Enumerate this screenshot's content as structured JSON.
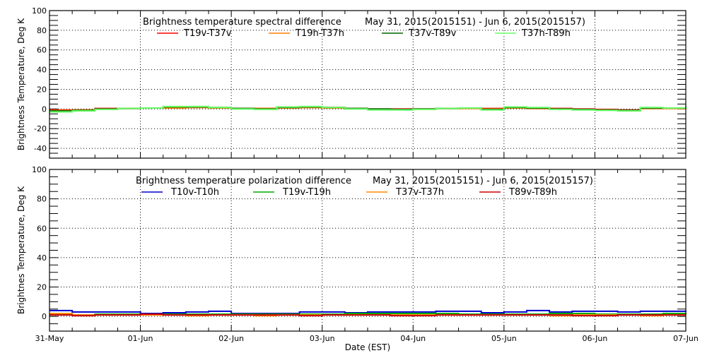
{
  "chart_data": [
    {
      "type": "line",
      "title": "Brightness temperature spectral difference",
      "date_range": "May 31, 2015(2015151) - Jun  6, 2015(2015157)",
      "ylabel": "Brightness Temperature, Deg K",
      "xlabel": "",
      "ylim": [
        -50,
        100
      ],
      "yticks": [
        -40,
        -20,
        0,
        20,
        40,
        60,
        80,
        100
      ],
      "xlim": [
        0,
        7
      ],
      "grid": true,
      "legend_placement": "top-center",
      "x": [
        0,
        0.25,
        0.5,
        0.75,
        1,
        1.25,
        1.5,
        1.75,
        2,
        2.25,
        2.5,
        2.75,
        3,
        3.25,
        3.5,
        3.75,
        4,
        4.25,
        4.5,
        4.75,
        5,
        5.25,
        5.5,
        5.75,
        6,
        6.25,
        6.5,
        6.75,
        7
      ],
      "series": [
        {
          "name": "T19v-T37v",
          "color": "#ff0000",
          "values": [
            -1,
            -1,
            0.5,
            0.5,
            1,
            1.5,
            1.5,
            1,
            0.5,
            0.5,
            1,
            1.5,
            1.5,
            0.5,
            0,
            0,
            0,
            0.5,
            1,
            0.5,
            1,
            0.5,
            0.5,
            0,
            -0.5,
            -1,
            0.5,
            1,
            1
          ]
        },
        {
          "name": "T19h-T37h",
          "color": "#ff7f00",
          "values": [
            -1.5,
            -1,
            0,
            0.5,
            1,
            1,
            1.5,
            1,
            0.5,
            0.5,
            1,
            1.5,
            1,
            0.5,
            -0.5,
            -0.5,
            0,
            0.5,
            0.5,
            0,
            1,
            0.5,
            0,
            -0.5,
            -1,
            -1.5,
            0.5,
            0.5,
            1
          ]
        },
        {
          "name": "T37v-T89v",
          "color": "#006400",
          "values": [
            -2,
            -1.5,
            0,
            0.5,
            1,
            2,
            2,
            1.5,
            0.5,
            0,
            1.5,
            2,
            1.5,
            0.5,
            0,
            -0.5,
            0,
            0.5,
            1,
            -0.5,
            1.5,
            1,
            0,
            -0.5,
            -1,
            -1.5,
            1,
            1,
            2.5
          ]
        },
        {
          "name": "T37h-T89h",
          "color": "#66ff66",
          "values": [
            -3,
            -2,
            -0.5,
            0.5,
            1,
            2.5,
            2.5,
            1.5,
            0,
            -0.5,
            2,
            2.5,
            1.5,
            0,
            -1,
            -1,
            -0.5,
            0.5,
            1,
            -1,
            2,
            1.5,
            -0.5,
            -1,
            -1.5,
            -2,
            1.5,
            1,
            3.5
          ]
        }
      ]
    },
    {
      "type": "line",
      "title": "Brightness temperature polarization difference",
      "date_range": "May 31, 2015(2015151) - Jun  6, 2015(2015157)",
      "ylabel": "Brightnes Temperature, Deg K",
      "xlabel": "Date (EST)",
      "ylim": [
        -10,
        100
      ],
      "yticks": [
        0,
        20,
        40,
        60,
        80,
        100
      ],
      "xlim": [
        0,
        7
      ],
      "xticklabels": [
        "31-May",
        "01-Jun",
        "02-Jun",
        "03-Jun",
        "04-Jun",
        "05-Jun",
        "06-Jun",
        "07-Jun"
      ],
      "grid": true,
      "legend_placement": "top-center",
      "x": [
        0,
        0.25,
        0.5,
        0.75,
        1,
        1.25,
        1.5,
        1.75,
        2,
        2.25,
        2.5,
        2.75,
        3,
        3.25,
        3.5,
        3.75,
        4,
        4.25,
        4.5,
        4.75,
        5,
        5.25,
        5.5,
        5.75,
        6,
        6.25,
        6.5,
        6.75,
        7
      ],
      "series": [
        {
          "name": "T10v-T10h",
          "color": "#0000cc",
          "values": [
            4,
            3,
            3,
            3,
            2,
            2.5,
            3,
            3.5,
            2,
            2,
            2,
            3,
            3,
            2.5,
            3,
            3,
            3,
            3.5,
            3.5,
            2.5,
            3,
            4,
            3,
            3.5,
            3.5,
            3,
            3.5,
            3.5,
            3
          ]
        },
        {
          "name": "T19v-T19h",
          "color": "#00aa00",
          "values": [
            1.5,
            1,
            1.5,
            1.5,
            1.5,
            1.5,
            1.5,
            1.5,
            1.5,
            1.5,
            1.5,
            1.5,
            1.5,
            2,
            2,
            2,
            2,
            2,
            1.5,
            1.5,
            1.5,
            1.5,
            2,
            2,
            1.5,
            1.5,
            1.5,
            2,
            1.5
          ]
        },
        {
          "name": "T37v-T37h",
          "color": "#ff8c00",
          "values": [
            2,
            1,
            1,
            1,
            1,
            1,
            0.5,
            1,
            1,
            0.5,
            1,
            1,
            1,
            1,
            1,
            1,
            1,
            1,
            1,
            1,
            1,
            1,
            0.5,
            1,
            1,
            1,
            0.5,
            1,
            1
          ]
        },
        {
          "name": "T89v-T89h",
          "color": "#cc0000",
          "values": [
            1,
            0.5,
            1,
            1,
            1.5,
            1,
            1,
            1,
            1,
            1,
            1,
            0.5,
            1,
            1,
            1,
            0.5,
            0.5,
            1,
            1,
            1,
            1,
            1,
            1,
            0.5,
            0.5,
            1,
            1,
            1,
            1
          ]
        }
      ]
    }
  ]
}
